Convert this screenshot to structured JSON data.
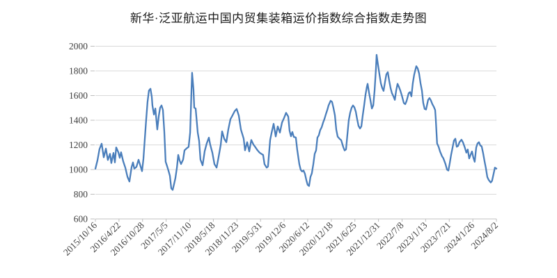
{
  "chart": {
    "line_color": "#4A7EBB",
    "grid_color": "#D9D9D9",
    "axis_color": "#C0C0C0",
    "tick_color": "#BDBDBD",
    "label_color": "#3F3F3F",
    "title_color": "#1A1A1A",
    "background": "#FFFFFF"
  },
  "chart_data": {
    "type": "line",
    "title": "新华·泛亚航运中国内贸集装箱运价指数综合指数走势图",
    "xlabel": "",
    "ylabel": "",
    "legend": false,
    "grid": true,
    "y_axis": {
      "min": 600,
      "max": 2000,
      "ticks": [
        600,
        800,
        1000,
        1200,
        1400,
        1600,
        1800,
        2000
      ]
    },
    "x_axis": {
      "start_date": "2015-10-16",
      "end_date": "2024-08-02",
      "tick_labels": [
        "2015/10/16",
        "2016/4/22",
        "2016/10/28",
        "2017/5/5",
        "2017/11/10",
        "2018/5/18",
        "2018/11/23",
        "2019/5/31",
        "2019/12/6",
        "2020/6/12",
        "2020/12/18",
        "2021/6/25",
        "2021/12/31",
        "2022/7/8",
        "2023/1/13",
        "2023/7/21",
        "2024/1/26",
        "2024/8/2"
      ]
    },
    "series": [
      {
        "name": "综合指数",
        "points": [
          [
            "2015-10-16",
            1007
          ],
          [
            "2015-11-02",
            1075
          ],
          [
            "2015-11-18",
            1166
          ],
          [
            "2015-12-05",
            1210
          ],
          [
            "2015-12-22",
            1100
          ],
          [
            "2016-01-08",
            1170
          ],
          [
            "2016-01-24",
            1078
          ],
          [
            "2016-02-10",
            1128
          ],
          [
            "2016-02-21",
            1053
          ],
          [
            "2016-03-09",
            1135
          ],
          [
            "2016-03-20",
            1058
          ],
          [
            "2016-03-31",
            1180
          ],
          [
            "2016-04-17",
            1140
          ],
          [
            "2016-04-28",
            1095
          ],
          [
            "2016-05-09",
            1140
          ],
          [
            "2016-05-26",
            1066
          ],
          [
            "2016-06-12",
            1016
          ],
          [
            "2016-06-29",
            941
          ],
          [
            "2016-07-15",
            903
          ],
          [
            "2016-08-01",
            1020
          ],
          [
            "2016-08-12",
            1058
          ],
          [
            "2016-08-23",
            1008
          ],
          [
            "2016-09-09",
            1022
          ],
          [
            "2016-09-26",
            1080
          ],
          [
            "2016-10-13",
            1022
          ],
          [
            "2016-10-24",
            987
          ],
          [
            "2016-11-04",
            1087
          ],
          [
            "2016-11-15",
            1250
          ],
          [
            "2016-11-26",
            1409
          ],
          [
            "2016-12-07",
            1548
          ],
          [
            "2016-12-18",
            1640
          ],
          [
            "2016-12-30",
            1655
          ],
          [
            "2017-01-10",
            1590
          ],
          [
            "2017-01-15",
            1521
          ],
          [
            "2017-01-27",
            1446
          ],
          [
            "2017-02-07",
            1495
          ],
          [
            "2017-02-23",
            1325
          ],
          [
            "2017-03-07",
            1437
          ],
          [
            "2017-03-18",
            1502
          ],
          [
            "2017-03-29",
            1520
          ],
          [
            "2017-04-09",
            1483
          ],
          [
            "2017-04-20",
            1306
          ],
          [
            "2017-05-01",
            1063
          ],
          [
            "2017-05-13",
            1026
          ],
          [
            "2017-05-24",
            988
          ],
          [
            "2017-06-04",
            950
          ],
          [
            "2017-06-15",
            848
          ],
          [
            "2017-06-26",
            835
          ],
          [
            "2017-07-07",
            880
          ],
          [
            "2017-07-18",
            930
          ],
          [
            "2017-07-30",
            1016
          ],
          [
            "2017-08-10",
            1119
          ],
          [
            "2017-08-21",
            1073
          ],
          [
            "2017-09-01",
            1045
          ],
          [
            "2017-09-18",
            1081
          ],
          [
            "2017-09-29",
            1156
          ],
          [
            "2017-10-16",
            1172
          ],
          [
            "2017-11-01",
            1184
          ],
          [
            "2017-11-13",
            1300
          ],
          [
            "2017-11-24",
            1642
          ],
          [
            "2017-11-29",
            1785
          ],
          [
            "2017-12-10",
            1650
          ],
          [
            "2017-12-16",
            1502
          ],
          [
            "2017-12-27",
            1495
          ],
          [
            "2018-01-13",
            1300
          ],
          [
            "2018-01-24",
            1232
          ],
          [
            "2018-02-04",
            1081
          ],
          [
            "2018-02-21",
            1035
          ],
          [
            "2018-03-10",
            1150
          ],
          [
            "2018-03-26",
            1212
          ],
          [
            "2018-04-12",
            1259
          ],
          [
            "2018-04-23",
            1203
          ],
          [
            "2018-05-10",
            1137
          ],
          [
            "2018-05-27",
            1044
          ],
          [
            "2018-06-13",
            1016
          ],
          [
            "2018-06-29",
            1100
          ],
          [
            "2018-07-16",
            1200
          ],
          [
            "2018-07-27",
            1310
          ],
          [
            "2018-08-13",
            1250
          ],
          [
            "2018-08-30",
            1222
          ],
          [
            "2018-09-15",
            1325
          ],
          [
            "2018-10-02",
            1409
          ],
          [
            "2018-10-19",
            1440
          ],
          [
            "2018-11-05",
            1474
          ],
          [
            "2018-11-21",
            1492
          ],
          [
            "2018-12-08",
            1437
          ],
          [
            "2018-12-25",
            1325
          ],
          [
            "2019-01-16",
            1250
          ],
          [
            "2019-01-27",
            1156
          ],
          [
            "2019-02-13",
            1222
          ],
          [
            "2019-03-02",
            1147
          ],
          [
            "2019-03-18",
            1240
          ],
          [
            "2019-04-04",
            1203
          ],
          [
            "2019-04-21",
            1180
          ],
          [
            "2019-05-07",
            1156
          ],
          [
            "2019-05-24",
            1137
          ],
          [
            "2019-06-10",
            1125
          ],
          [
            "2019-06-21",
            1119
          ],
          [
            "2019-07-02",
            1044
          ],
          [
            "2019-07-19",
            1016
          ],
          [
            "2019-07-30",
            1025
          ],
          [
            "2019-08-16",
            1240
          ],
          [
            "2019-08-27",
            1296
          ],
          [
            "2019-09-13",
            1371
          ],
          [
            "2019-09-30",
            1268
          ],
          [
            "2019-10-16",
            1350
          ],
          [
            "2019-11-02",
            1300
          ],
          [
            "2019-11-19",
            1380
          ],
          [
            "2019-12-06",
            1420
          ],
          [
            "2019-12-22",
            1460
          ],
          [
            "2020-01-08",
            1430
          ],
          [
            "2020-01-19",
            1315
          ],
          [
            "2020-01-30",
            1270
          ],
          [
            "2020-02-10",
            1305
          ],
          [
            "2020-02-22",
            1265
          ],
          [
            "2020-03-09",
            1260
          ],
          [
            "2020-03-20",
            1160
          ],
          [
            "2020-04-06",
            1044
          ],
          [
            "2020-04-17",
            998
          ],
          [
            "2020-04-28",
            985
          ],
          [
            "2020-05-10",
            992
          ],
          [
            "2020-05-21",
            965
          ],
          [
            "2020-06-01",
            914
          ],
          [
            "2020-06-12",
            876
          ],
          [
            "2020-06-23",
            867
          ],
          [
            "2020-07-04",
            940
          ],
          [
            "2020-07-15",
            970
          ],
          [
            "2020-07-27",
            1044
          ],
          [
            "2020-08-07",
            1128
          ],
          [
            "2020-08-18",
            1156
          ],
          [
            "2020-08-29",
            1259
          ],
          [
            "2020-09-09",
            1278
          ],
          [
            "2020-09-20",
            1320
          ],
          [
            "2020-10-02",
            1343
          ],
          [
            "2020-10-13",
            1380
          ],
          [
            "2020-10-24",
            1410
          ],
          [
            "2020-11-04",
            1446
          ],
          [
            "2020-11-15",
            1480
          ],
          [
            "2020-11-26",
            1520
          ],
          [
            "2020-12-13",
            1558
          ],
          [
            "2020-12-24",
            1549
          ],
          [
            "2021-01-04",
            1501
          ],
          [
            "2021-01-16",
            1440
          ],
          [
            "2021-01-27",
            1323
          ],
          [
            "2021-02-07",
            1267
          ],
          [
            "2021-02-24",
            1248
          ],
          [
            "2021-03-07",
            1239
          ],
          [
            "2021-03-24",
            1183
          ],
          [
            "2021-04-04",
            1155
          ],
          [
            "2021-04-15",
            1164
          ],
          [
            "2021-04-26",
            1280
          ],
          [
            "2021-05-07",
            1400
          ],
          [
            "2021-05-18",
            1460
          ],
          [
            "2021-05-30",
            1501
          ],
          [
            "2021-06-10",
            1520
          ],
          [
            "2021-06-21",
            1505
          ],
          [
            "2021-07-02",
            1470
          ],
          [
            "2021-07-13",
            1410
          ],
          [
            "2021-07-24",
            1355
          ],
          [
            "2021-08-05",
            1333
          ],
          [
            "2021-08-16",
            1350
          ],
          [
            "2021-08-27",
            1440
          ],
          [
            "2021-09-07",
            1520
          ],
          [
            "2021-09-18",
            1604
          ],
          [
            "2021-09-29",
            1670
          ],
          [
            "2021-10-05",
            1695
          ],
          [
            "2021-10-16",
            1624
          ],
          [
            "2021-10-27",
            1567
          ],
          [
            "2021-11-08",
            1495
          ],
          [
            "2021-11-19",
            1520
          ],
          [
            "2021-11-30",
            1640
          ],
          [
            "2021-12-11",
            1820
          ],
          [
            "2021-12-16",
            1930
          ],
          [
            "2021-12-27",
            1850
          ],
          [
            "2022-01-08",
            1772
          ],
          [
            "2022-01-19",
            1700
          ],
          [
            "2022-01-30",
            1660
          ],
          [
            "2022-02-10",
            1638
          ],
          [
            "2022-02-21",
            1707
          ],
          [
            "2022-03-04",
            1772
          ],
          [
            "2022-03-16",
            1790
          ],
          [
            "2022-03-27",
            1720
          ],
          [
            "2022-04-07",
            1660
          ],
          [
            "2022-04-18",
            1620
          ],
          [
            "2022-04-30",
            1594
          ],
          [
            "2022-05-11",
            1565
          ],
          [
            "2022-05-22",
            1640
          ],
          [
            "2022-06-02",
            1695
          ],
          [
            "2022-06-13",
            1670
          ],
          [
            "2022-06-24",
            1640
          ],
          [
            "2022-07-05",
            1605
          ],
          [
            "2022-07-22",
            1540
          ],
          [
            "2022-08-02",
            1530
          ],
          [
            "2022-08-13",
            1555
          ],
          [
            "2022-08-30",
            1620
          ],
          [
            "2022-09-10",
            1628
          ],
          [
            "2022-09-21",
            1594
          ],
          [
            "2022-10-02",
            1700
          ],
          [
            "2022-10-13",
            1770
          ],
          [
            "2022-10-30",
            1838
          ],
          [
            "2022-11-10",
            1820
          ],
          [
            "2022-11-21",
            1780
          ],
          [
            "2022-12-03",
            1700
          ],
          [
            "2022-12-14",
            1640
          ],
          [
            "2022-12-25",
            1540
          ],
          [
            "2023-01-05",
            1492
          ],
          [
            "2023-01-16",
            1487
          ],
          [
            "2023-02-02",
            1565
          ],
          [
            "2023-02-13",
            1580
          ],
          [
            "2023-02-24",
            1560
          ],
          [
            "2023-03-08",
            1530
          ],
          [
            "2023-03-19",
            1510
          ],
          [
            "2023-03-30",
            1483
          ],
          [
            "2023-04-04",
            1409
          ],
          [
            "2023-04-15",
            1212
          ],
          [
            "2023-04-27",
            1184
          ],
          [
            "2023-05-08",
            1147
          ],
          [
            "2023-05-24",
            1109
          ],
          [
            "2023-06-04",
            1091
          ],
          [
            "2023-06-21",
            1044
          ],
          [
            "2023-07-03",
            1000
          ],
          [
            "2023-07-14",
            992
          ],
          [
            "2023-07-25",
            1053
          ],
          [
            "2023-08-05",
            1119
          ],
          [
            "2023-08-16",
            1175
          ],
          [
            "2023-08-28",
            1235
          ],
          [
            "2023-09-08",
            1250
          ],
          [
            "2023-09-19",
            1185
          ],
          [
            "2023-09-30",
            1192
          ],
          [
            "2023-10-11",
            1222
          ],
          [
            "2023-10-27",
            1242
          ],
          [
            "2023-11-08",
            1220
          ],
          [
            "2023-11-24",
            1175
          ],
          [
            "2023-12-05",
            1137
          ],
          [
            "2023-12-16",
            1163
          ],
          [
            "2023-12-28",
            1090
          ],
          [
            "2024-01-08",
            1120
          ],
          [
            "2024-01-19",
            1147
          ],
          [
            "2024-01-30",
            1098
          ],
          [
            "2024-02-10",
            1063
          ],
          [
            "2024-02-22",
            1180
          ],
          [
            "2024-03-04",
            1212
          ],
          [
            "2024-03-15",
            1222
          ],
          [
            "2024-03-26",
            1195
          ],
          [
            "2024-04-06",
            1188
          ],
          [
            "2024-04-17",
            1135
          ],
          [
            "2024-04-29",
            1066
          ],
          [
            "2024-05-10",
            1010
          ],
          [
            "2024-05-21",
            940
          ],
          [
            "2024-06-01",
            916
          ],
          [
            "2024-06-17",
            895
          ],
          [
            "2024-06-28",
            908
          ],
          [
            "2024-07-10",
            965
          ],
          [
            "2024-07-21",
            1016
          ],
          [
            "2024-08-02",
            1008
          ]
        ]
      }
    ]
  }
}
